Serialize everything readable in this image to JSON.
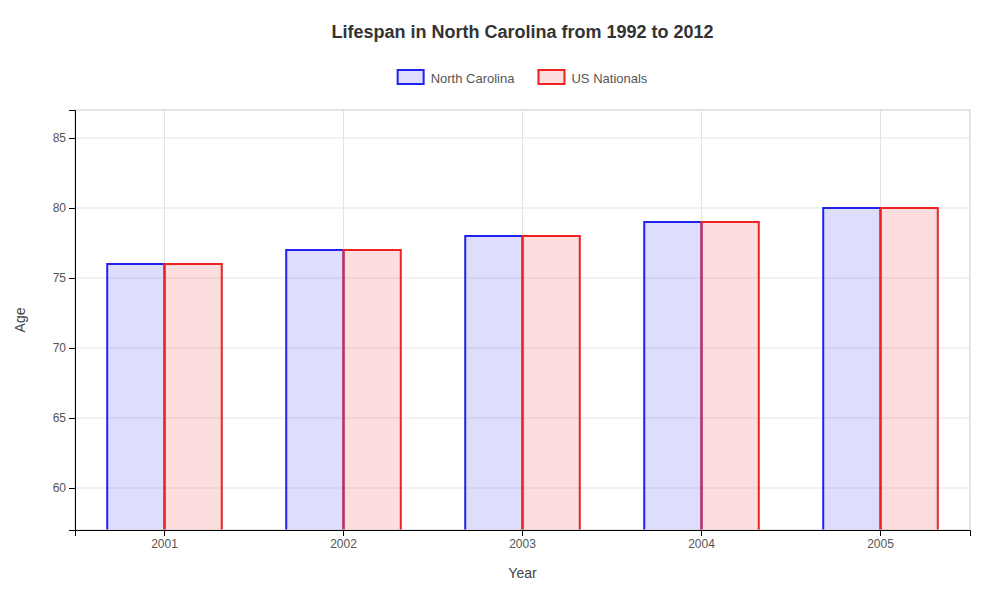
{
  "chart_data": {
    "type": "bar",
    "title": "Lifespan in North Carolina from 1992 to 2012",
    "xlabel": "Year",
    "ylabel": "Age",
    "categories": [
      "2001",
      "2002",
      "2003",
      "2004",
      "2005"
    ],
    "series": [
      {
        "name": "North Carolina",
        "color": "#2222ee",
        "values": [
          76,
          77,
          78,
          79,
          80
        ]
      },
      {
        "name": "US Nationals",
        "color": "#ee2222",
        "values": [
          76,
          77,
          78,
          79,
          80
        ]
      }
    ],
    "ylim": [
      57,
      87
    ],
    "yticks": [
      60,
      65,
      70,
      75,
      80,
      85
    ],
    "grid": true,
    "legend": "top"
  }
}
